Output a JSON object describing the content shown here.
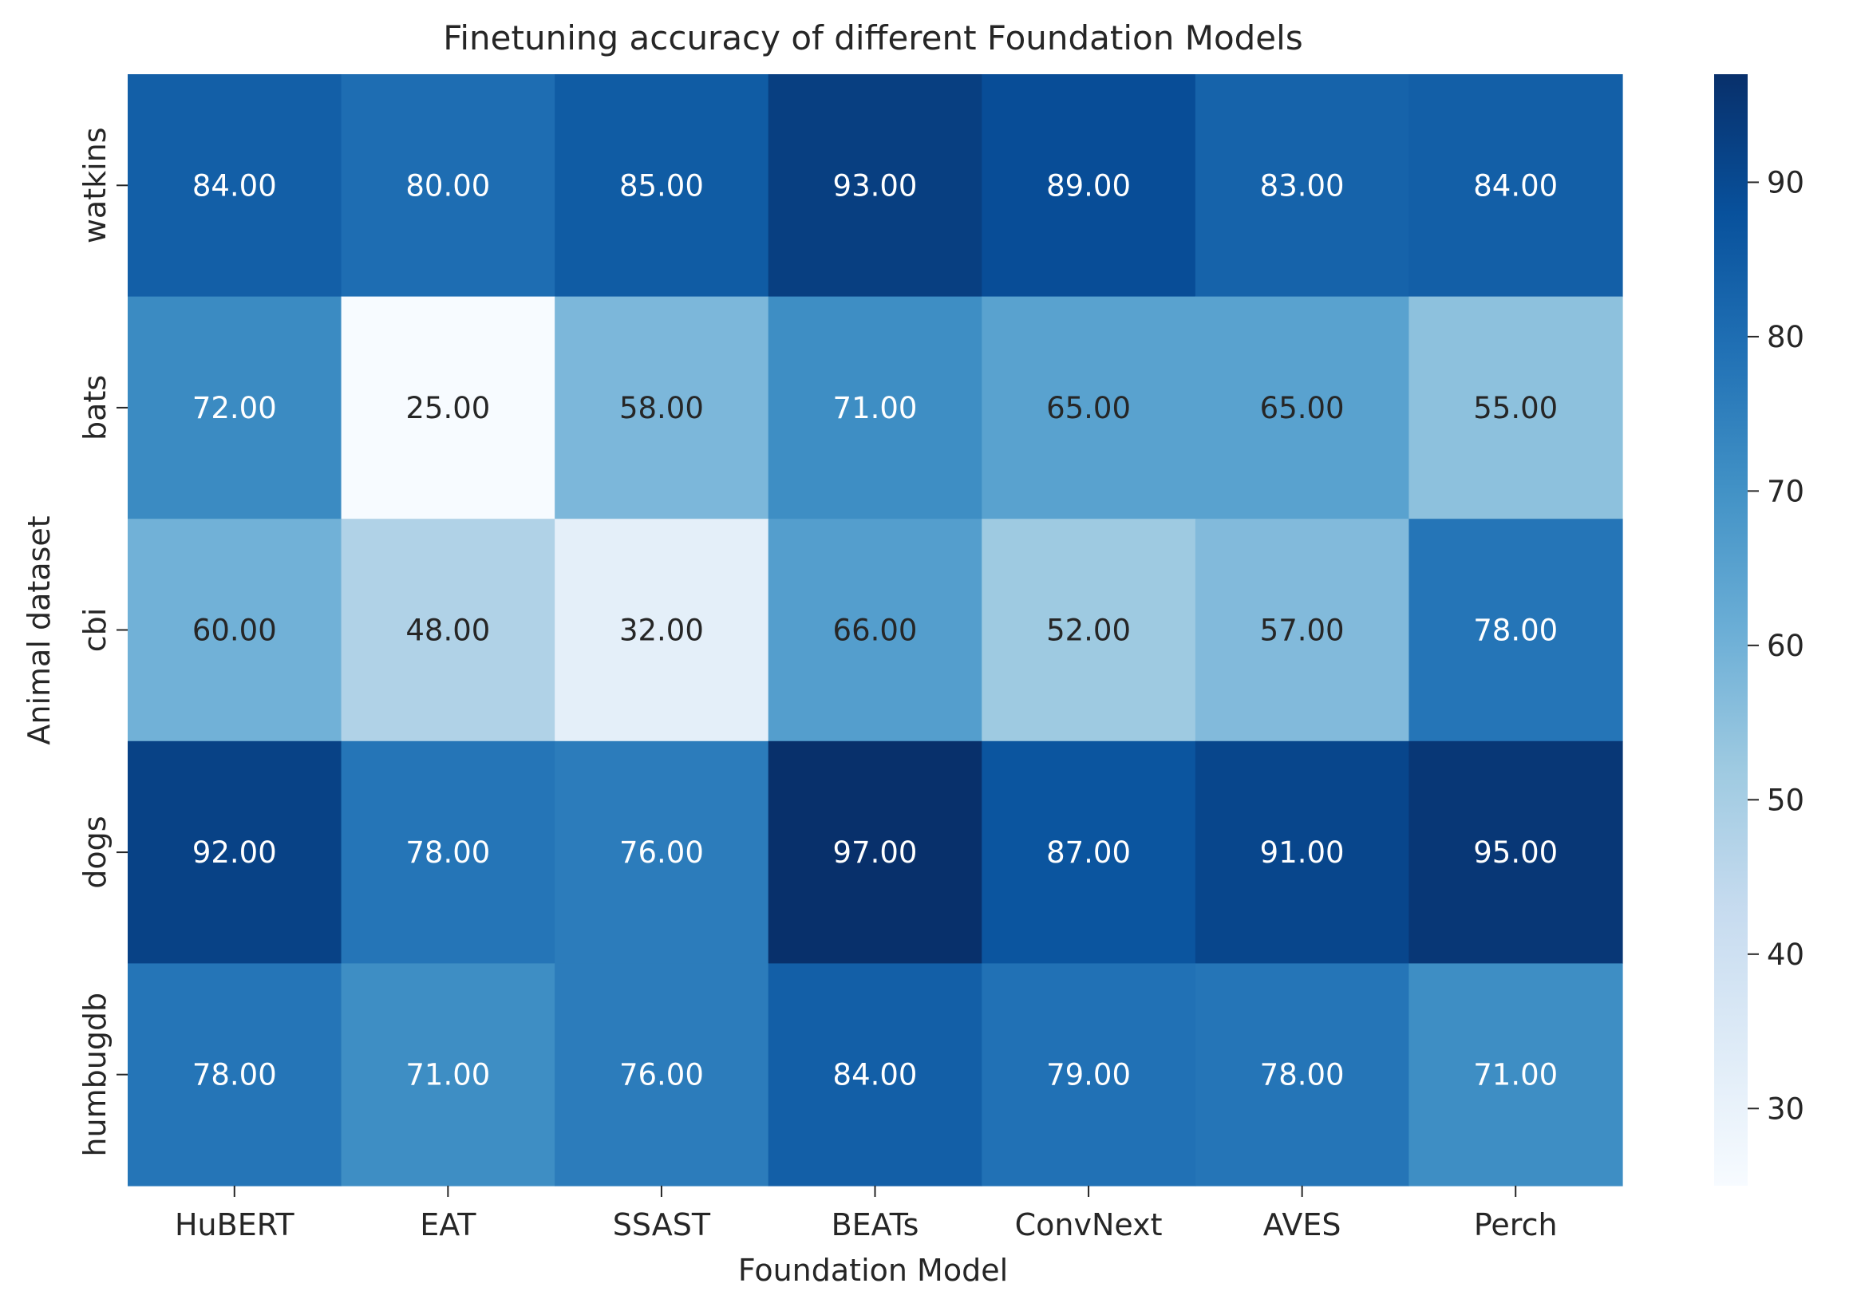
{
  "chart_data": {
    "type": "heatmap",
    "title": "Finetuning accuracy of different Foundation Models",
    "xlabel": "Foundation Model",
    "ylabel": "Animal dataset",
    "x_categories": [
      "HuBERT",
      "EAT",
      "SSAST",
      "BEATs",
      "ConvNext",
      "AVES",
      "Perch"
    ],
    "y_categories": [
      "watkins",
      "bats",
      "cbi",
      "dogs",
      "humbugdb"
    ],
    "values": [
      [
        84,
        80,
        85,
        93,
        89,
        83,
        84
      ],
      [
        72,
        25,
        58,
        71,
        65,
        65,
        55
      ],
      [
        60,
        48,
        32,
        66,
        52,
        57,
        78
      ],
      [
        92,
        78,
        76,
        97,
        87,
        91,
        95
      ],
      [
        78,
        71,
        76,
        84,
        79,
        78,
        71
      ]
    ],
    "value_format": "2 decimals",
    "colormap": "Blues",
    "color_range": [
      25,
      97
    ],
    "colorbar_ticks": [
      30,
      40,
      50,
      60,
      70,
      80,
      90
    ]
  }
}
